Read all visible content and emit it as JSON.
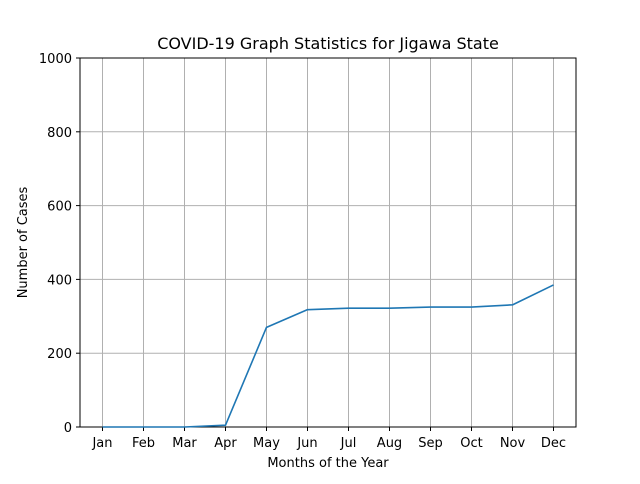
{
  "chart_data": {
    "type": "line",
    "title": "COVID-19 Graph Statistics for Jigawa State",
    "xlabel": "Months of the Year",
    "ylabel": "Number of Cases",
    "categories": [
      "Jan",
      "Feb",
      "Mar",
      "Apr",
      "May",
      "Jun",
      "Jul",
      "Aug",
      "Sep",
      "Oct",
      "Nov",
      "Dec"
    ],
    "series": [
      {
        "values": [
          0,
          0,
          0,
          5,
          270,
          318,
          322,
          322,
          325,
          325,
          331,
          385
        ],
        "color": "#1f77b4"
      }
    ],
    "ylim": [
      0,
      1000
    ],
    "yticks": [
      0,
      200,
      400,
      600,
      800,
      1000
    ],
    "grid": true
  }
}
